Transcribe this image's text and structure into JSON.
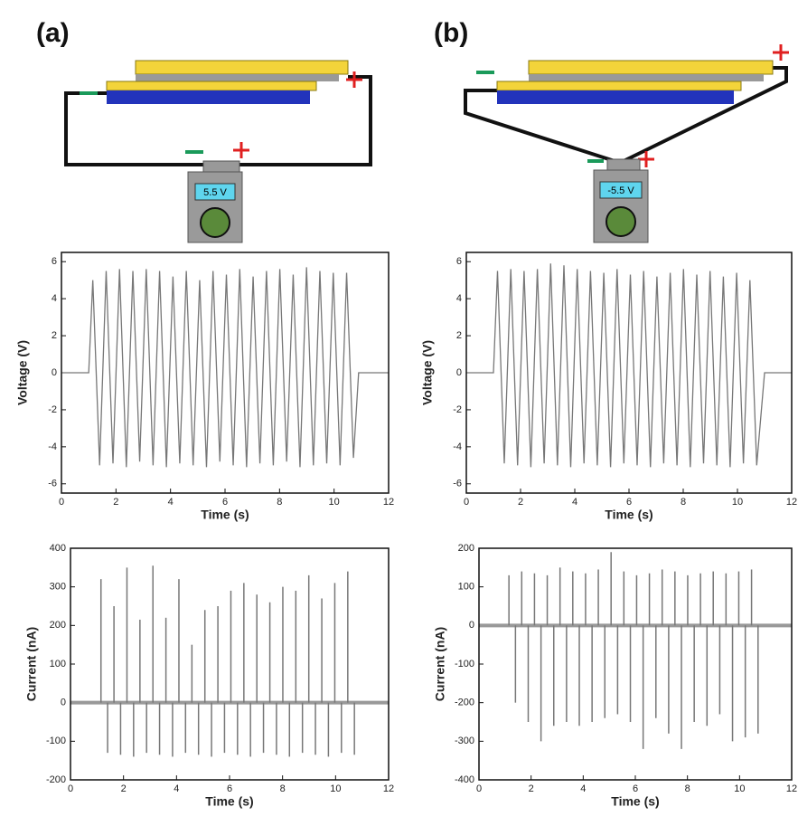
{
  "panels": [
    {
      "label": "(a)",
      "meter": "5.5 V"
    },
    {
      "label": "(b)",
      "meter": "-5.5 V"
    }
  ],
  "chart_data": [
    {
      "type": "line",
      "xlabel": "Time (s)",
      "ylabel": "Voltage (V)",
      "color": "#777777",
      "xlim": [
        0,
        12
      ],
      "ylim": [
        -6.5,
        6.5
      ],
      "xticks": [
        0,
        2,
        4,
        6,
        8,
        10,
        12
      ],
      "yticks": [
        -6,
        -4,
        -2,
        0,
        2,
        4,
        6
      ],
      "x": [
        0,
        1.0,
        1.15,
        1.4,
        1.64,
        1.89,
        2.13,
        2.38,
        2.62,
        2.87,
        3.11,
        3.36,
        3.6,
        3.85,
        4.09,
        4.34,
        4.58,
        4.83,
        5.07,
        5.32,
        5.56,
        5.81,
        6.05,
        6.3,
        6.54,
        6.79,
        7.03,
        7.28,
        7.52,
        7.77,
        8.01,
        8.26,
        8.5,
        8.75,
        8.99,
        9.24,
        9.48,
        9.73,
        9.97,
        10.22,
        10.46,
        10.71,
        10.9,
        12
      ],
      "values": [
        0,
        0,
        5.0,
        -5.0,
        5.5,
        -4.9,
        5.6,
        -5.1,
        5.5,
        -4.8,
        5.6,
        -5.0,
        5.5,
        -5.1,
        5.2,
        -4.9,
        5.5,
        -5.0,
        5.0,
        -5.1,
        5.5,
        -4.8,
        5.3,
        -5.0,
        5.6,
        -5.1,
        5.2,
        -4.9,
        5.5,
        -5.0,
        5.6,
        -4.8,
        5.3,
        -5.1,
        5.7,
        -5.0,
        5.5,
        -4.9,
        5.4,
        -5.0,
        5.4,
        -4.6,
        0,
        0
      ]
    },
    {
      "type": "line",
      "xlabel": "Time (s)",
      "ylabel": "Voltage (V)",
      "color": "#777777",
      "xlim": [
        0,
        12
      ],
      "ylim": [
        -6.5,
        6.5
      ],
      "xticks": [
        0,
        2,
        4,
        6,
        8,
        10,
        12
      ],
      "yticks": [
        -6,
        -4,
        -2,
        0,
        2,
        4,
        6
      ],
      "x": [
        0,
        1.0,
        1.15,
        1.4,
        1.64,
        1.89,
        2.13,
        2.38,
        2.62,
        2.87,
        3.11,
        3.36,
        3.6,
        3.85,
        4.09,
        4.34,
        4.58,
        4.83,
        5.07,
        5.32,
        5.56,
        5.81,
        6.05,
        6.3,
        6.54,
        6.79,
        7.03,
        7.28,
        7.52,
        7.77,
        8.01,
        8.26,
        8.5,
        8.75,
        8.99,
        9.24,
        9.48,
        9.73,
        9.97,
        10.22,
        10.46,
        10.71,
        11.0,
        12
      ],
      "values": [
        0,
        0,
        5.5,
        -4.9,
        5.6,
        -5.0,
        5.5,
        -5.1,
        5.6,
        -4.9,
        5.9,
        -5.0,
        5.8,
        -5.1,
        5.6,
        -4.9,
        5.5,
        -5.0,
        5.4,
        -5.1,
        5.6,
        -4.9,
        5.3,
        -5.0,
        5.5,
        -5.1,
        5.2,
        -4.9,
        5.4,
        -5.0,
        5.6,
        -5.1,
        5.3,
        -4.9,
        5.5,
        -5.0,
        5.2,
        -5.1,
        5.4,
        -4.9,
        5.0,
        -5.0,
        0,
        0
      ]
    },
    {
      "type": "stem",
      "xlabel": "Time (s)",
      "ylabel": "Current (nA)",
      "color": "#777777",
      "xlim": [
        0,
        12
      ],
      "ylim": [
        -200,
        400
      ],
      "xticks": [
        0,
        2,
        4,
        6,
        8,
        10,
        12
      ],
      "yticks": [
        -200,
        -100,
        0,
        100,
        200,
        300,
        400
      ],
      "x": [
        1.15,
        1.4,
        1.64,
        1.89,
        2.13,
        2.38,
        2.62,
        2.87,
        3.11,
        3.36,
        3.6,
        3.85,
        4.09,
        4.34,
        4.58,
        4.83,
        5.07,
        5.32,
        5.56,
        5.81,
        6.05,
        6.3,
        6.54,
        6.79,
        7.03,
        7.28,
        7.52,
        7.77,
        8.01,
        8.26,
        8.5,
        8.75,
        8.99,
        9.24,
        9.48,
        9.73,
        9.97,
        10.22,
        10.46,
        10.71
      ],
      "values": [
        320,
        -130,
        250,
        -135,
        350,
        -140,
        215,
        -130,
        355,
        -135,
        220,
        -140,
        320,
        -130,
        150,
        -135,
        240,
        -140,
        250,
        -130,
        290,
        -135,
        310,
        -140,
        280,
        -130,
        260,
        -135,
        300,
        -140,
        290,
        -130,
        330,
        -135,
        270,
        -140,
        310,
        -130,
        340,
        -135
      ]
    },
    {
      "type": "stem",
      "xlabel": "Time (s)",
      "ylabel": "Current (nA)",
      "color": "#777777",
      "xlim": [
        0,
        12
      ],
      "ylim": [
        -400,
        200
      ],
      "xticks": [
        0,
        2,
        4,
        6,
        8,
        10,
        12
      ],
      "yticks": [
        -400,
        -300,
        -200,
        -100,
        0,
        100,
        200
      ],
      "x": [
        1.15,
        1.4,
        1.64,
        1.89,
        2.13,
        2.38,
        2.62,
        2.87,
        3.11,
        3.36,
        3.6,
        3.85,
        4.09,
        4.34,
        4.58,
        4.83,
        5.07,
        5.32,
        5.56,
        5.81,
        6.05,
        6.3,
        6.54,
        6.79,
        7.03,
        7.28,
        7.52,
        7.77,
        8.01,
        8.26,
        8.5,
        8.75,
        8.99,
        9.24,
        9.48,
        9.73,
        9.97,
        10.22,
        10.46,
        10.71
      ],
      "values": [
        130,
        -200,
        140,
        -250,
        135,
        -300,
        130,
        -260,
        150,
        -250,
        140,
        -260,
        135,
        -250,
        145,
        -240,
        190,
        -230,
        140,
        -250,
        130,
        -320,
        135,
        -240,
        145,
        -280,
        140,
        -320,
        130,
        -250,
        135,
        -260,
        140,
        -230,
        135,
        -300,
        140,
        -290,
        145,
        -280
      ]
    }
  ]
}
